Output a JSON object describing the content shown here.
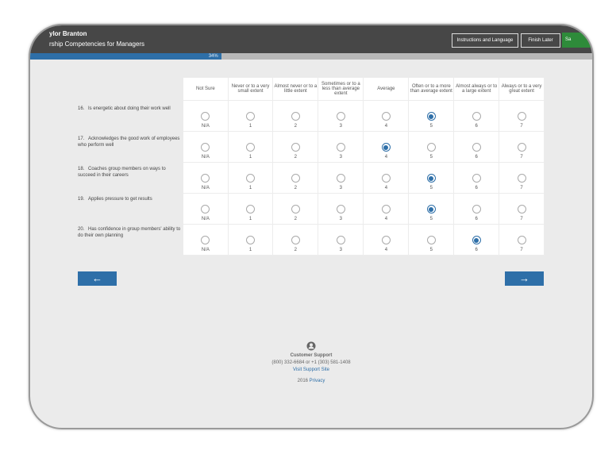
{
  "header": {
    "name": "ylor Branton",
    "subtitle": "rship Competencies for Managers",
    "instructions_label": "Instructions and Language",
    "finish_later_label": "Finish Later",
    "save_label": "Sa"
  },
  "progress": {
    "percent": 34,
    "label": "34%"
  },
  "columns": [
    {
      "heading": "Not Sure",
      "value": "N/A"
    },
    {
      "heading": "Never or to a very small extent",
      "value": "1"
    },
    {
      "heading": "Almost never or to a little extent",
      "value": "2"
    },
    {
      "heading": "Sometimes or to a less than average extent",
      "value": "3"
    },
    {
      "heading": "Average",
      "value": "4"
    },
    {
      "heading": "Often or to a more than average extent",
      "value": "5"
    },
    {
      "heading": "Almost always or to a large extent",
      "value": "6"
    },
    {
      "heading": "Always or to a very great extent",
      "value": "7"
    }
  ],
  "questions": [
    {
      "number": "16.",
      "text": "Is energetic about doing their work well",
      "selected": 5
    },
    {
      "number": "17.",
      "text": "Acknowledges the good work of employees who perform well",
      "selected": 4
    },
    {
      "number": "18.",
      "text": "Coaches group members on ways to succeed in their careers",
      "selected": 5
    },
    {
      "number": "19.",
      "text": "Applies pressure to get results",
      "selected": 5
    },
    {
      "number": "20.",
      "text": "Has confidence in group members' ability to do their own planning",
      "selected": 6
    }
  ],
  "nav": {
    "back_icon": "←",
    "next_icon": "→"
  },
  "footer": {
    "icon": "user-icon",
    "title": "Customer Support",
    "phone": "(800) 332-6684 or +1 (303) 581-1408",
    "support_link": "Visit Support Site",
    "year": "2016",
    "privacy_link": "Privacy"
  },
  "colors": {
    "header": "#474747",
    "accent": "#2e6fa8",
    "save": "#2e8b3a"
  }
}
